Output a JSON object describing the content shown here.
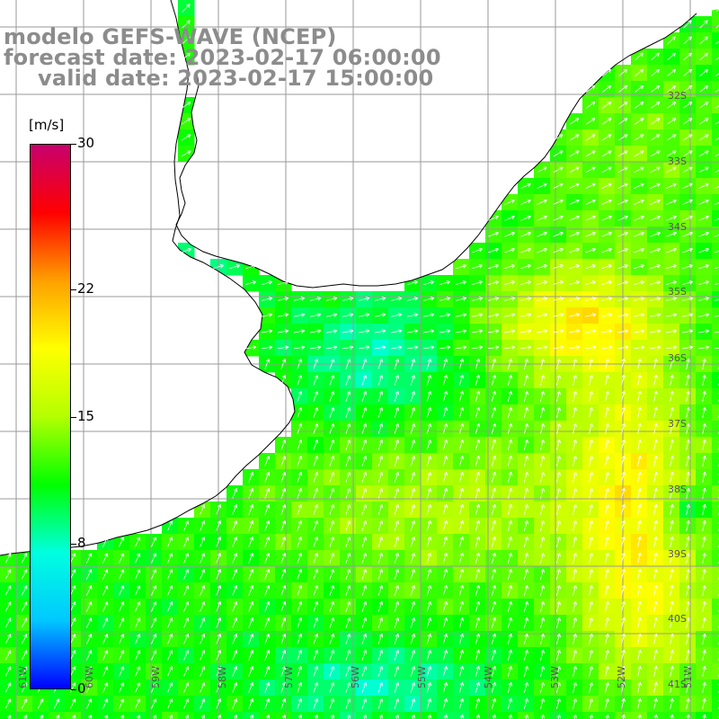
{
  "title": {
    "line1": "modelo GEFS-WAVE (NCEP)",
    "line2": "forecast date: 2023-02-17 06:00:00",
    "line3": "valid date: 2023-02-17 15:00:00"
  },
  "legend": {
    "unit": "[m/s]",
    "ticks": [
      {
        "value": 30,
        "label": "30"
      },
      {
        "value": 22,
        "label": "22"
      },
      {
        "value": 15,
        "label": "15"
      },
      {
        "value": 8,
        "label": "8"
      },
      {
        "value": 0,
        "label": "0"
      }
    ],
    "range": [
      0,
      30
    ],
    "colors": [
      "#0000ff",
      "#00c8ff",
      "#00ffe0",
      "#00ff00",
      "#b4ff00",
      "#ffff00",
      "#ffa000",
      "#ff0000",
      "#c8006e"
    ]
  },
  "lat_labels": [
    "32S",
    "33S",
    "34S",
    "35S",
    "36S",
    "37S",
    "38S",
    "39S",
    "40S",
    "41S"
  ],
  "lon_labels": [
    "61W",
    "60W",
    "59W",
    "58W",
    "57W",
    "56W",
    "55W",
    "54W",
    "53W",
    "52W",
    "51W"
  ],
  "map": {
    "land_color": "#ffffff",
    "coast_color": "#000000",
    "grid_color": "#9a9a9a",
    "arrow_color": "#ffffff"
  }
}
